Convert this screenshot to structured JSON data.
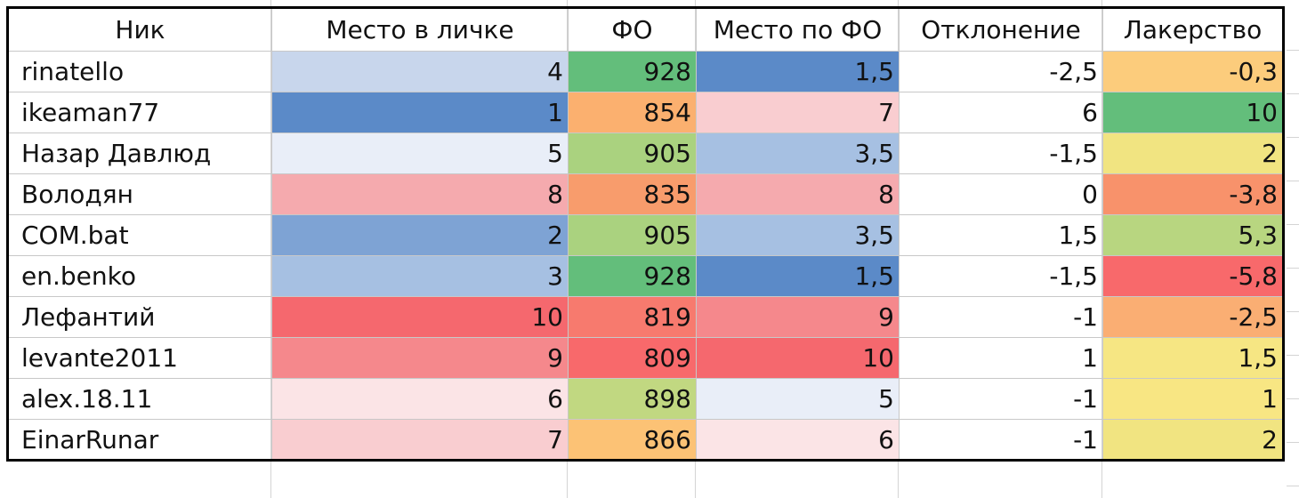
{
  "headers": [
    "Ник",
    "Место в личке",
    "ФО",
    "Место по ФО",
    "Отклонение",
    "Лакерство"
  ],
  "rows": [
    {
      "nick": "rinatello",
      "place_pm": "4",
      "fo": "928",
      "place_fo": "1,5",
      "deviation": "-2,5",
      "luck": "-0,3"
    },
    {
      "nick": "ikeaman77",
      "place_pm": "1",
      "fo": "854",
      "place_fo": "7",
      "deviation": "6",
      "luck": "10"
    },
    {
      "nick": "Назар Давлюд",
      "place_pm": "5",
      "fo": "905",
      "place_fo": "3,5",
      "deviation": "-1,5",
      "luck": "2"
    },
    {
      "nick": "Володян",
      "place_pm": "8",
      "fo": "835",
      "place_fo": "8",
      "deviation": "0",
      "luck": "-3,8"
    },
    {
      "nick": "COM.bat",
      "place_pm": "2",
      "fo": "905",
      "place_fo": "3,5",
      "deviation": "1,5",
      "luck": "5,3"
    },
    {
      "nick": "en.benko",
      "place_pm": "3",
      "fo": "928",
      "place_fo": "1,5",
      "deviation": "-1,5",
      "luck": "-5,8"
    },
    {
      "nick": "Лефантий",
      "place_pm": "10",
      "fo": "819",
      "place_fo": "9",
      "deviation": "-1",
      "luck": "-2,5"
    },
    {
      "nick": "levante2011",
      "place_pm": "9",
      "fo": "809",
      "place_fo": "10",
      "deviation": "1",
      "luck": "1,5"
    },
    {
      "nick": "alex.18.11",
      "place_pm": "6",
      "fo": "898",
      "place_fo": "5",
      "deviation": "-1",
      "luck": "1"
    },
    {
      "nick": "EinarRunar",
      "place_pm": "7",
      "fo": "866",
      "place_fo": "6",
      "deviation": "-1",
      "luck": "2"
    }
  ],
  "cell_colors": {
    "place_pm": [
      "#c8d6ec",
      "#5b8ac8",
      "#e9eef8",
      "#f5aaae",
      "#7ea3d4",
      "#a6c0e2",
      "#f5686e",
      "#f5888c",
      "#fbe4e6",
      "#f9cdd0"
    ],
    "fo": [
      "#63be7b",
      "#fbb06f",
      "#aad27f",
      "#f89c6c",
      "#aad27f",
      "#63be7b",
      "#f77a6e",
      "#f8696b",
      "#c1d881",
      "#fcc275"
    ],
    "place_fo": [
      "#5b8ac8",
      "#f9cdd0",
      "#a6c0e2",
      "#f5aaae",
      "#a6c0e2",
      "#5b8ac8",
      "#f5888c",
      "#f5686e",
      "#e9eef8",
      "#fbe4e6"
    ],
    "luck": [
      "#fccc7c",
      "#63be7b",
      "#f1e481",
      "#f8926b",
      "#b8d680",
      "#f8696b",
      "#faae73",
      "#f6e683",
      "#f8e683",
      "#f1e481"
    ]
  }
}
